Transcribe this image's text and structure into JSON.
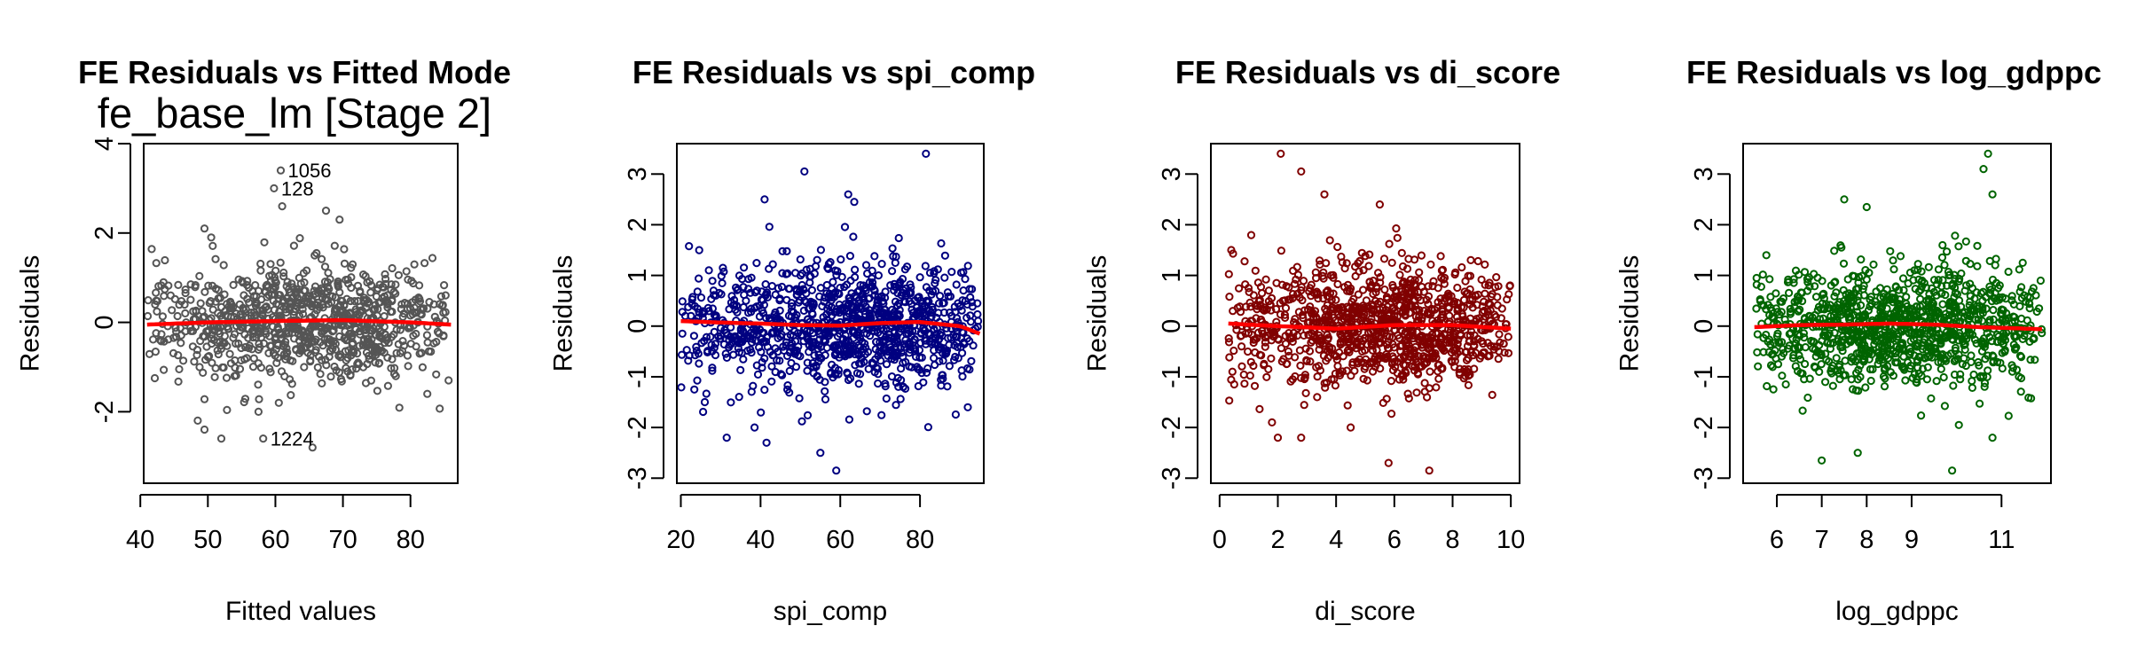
{
  "chart_data": [
    {
      "type": "scatter",
      "title": "FE Residuals vs Fitted Mode",
      "subtitle": "fe_base_lm [Stage 2]",
      "xlabel": "Fitted values",
      "ylabel": "Residuals",
      "xlim": [
        40.5,
        87
      ],
      "ylim": [
        -3.6,
        4.0
      ],
      "xticks": [
        40,
        50,
        60,
        70,
        80
      ],
      "yticks": [
        -2,
        0,
        2,
        4
      ],
      "color": "#555555",
      "smooth_color": "#ff0000",
      "smooth": {
        "x": [
          41,
          50,
          60,
          70,
          80,
          86
        ],
        "y": [
          -0.05,
          0.0,
          0.03,
          0.05,
          0.0,
          -0.05
        ]
      },
      "points": {
        "count": 900,
        "x_range": [
          41,
          86
        ],
        "x_peak": 67,
        "sd": 0.62
      },
      "outliers": [
        {
          "x": 60.8,
          "y": 3.4,
          "label": "1056"
        },
        {
          "x": 59.8,
          "y": 3.0,
          "label": "128"
        },
        {
          "x": 58.2,
          "y": -2.6,
          "label": "1224"
        },
        {
          "x": 61.0,
          "y": 2.6
        },
        {
          "x": 67.5,
          "y": 2.5
        },
        {
          "x": 69.5,
          "y": 2.3
        },
        {
          "x": 49.5,
          "y": 2.1
        },
        {
          "x": 50.5,
          "y": 1.9
        },
        {
          "x": 48.5,
          "y": -2.2
        },
        {
          "x": 49.5,
          "y": -2.4
        },
        {
          "x": 52.0,
          "y": -2.6
        },
        {
          "x": 57.5,
          "y": -2.0
        },
        {
          "x": 65.5,
          "y": -2.8
        },
        {
          "x": 60.5,
          "y": -1.8
        },
        {
          "x": 82.5,
          "y": -1.6
        }
      ]
    },
    {
      "type": "scatter",
      "title": "FE Residuals vs spi_comp",
      "subtitle": "",
      "xlabel": "spi_comp",
      "ylabel": "Residuals",
      "xlim": [
        19,
        96
      ],
      "ylim": [
        -3.1,
        3.6
      ],
      "xticks": [
        20,
        40,
        60,
        80
      ],
      "yticks": [
        -3,
        -2,
        -1,
        0,
        1,
        2,
        3
      ],
      "color": "#000080",
      "smooth_color": "#ff0000",
      "smooth": {
        "x": [
          20,
          30,
          40,
          50,
          60,
          70,
          80,
          90,
          95
        ],
        "y": [
          0.1,
          0.07,
          0.05,
          0.02,
          0.01,
          0.06,
          0.08,
          0.0,
          -0.15
        ]
      },
      "points": {
        "count": 1050,
        "x_range": [
          20,
          95
        ],
        "x_peak": 72,
        "sd": 0.6
      },
      "outliers": [
        {
          "x": 81.5,
          "y": 3.4
        },
        {
          "x": 51.0,
          "y": 3.05
        },
        {
          "x": 62.0,
          "y": 2.6
        },
        {
          "x": 63.5,
          "y": 2.45
        },
        {
          "x": 41.0,
          "y": 2.5
        },
        {
          "x": 59.0,
          "y": -2.85
        },
        {
          "x": 31.5,
          "y": -2.2
        },
        {
          "x": 41.5,
          "y": -2.3
        },
        {
          "x": 55.0,
          "y": -2.5
        },
        {
          "x": 26.0,
          "y": -1.5
        },
        {
          "x": 38.5,
          "y": -2.0
        },
        {
          "x": 92.0,
          "y": -1.6
        }
      ]
    },
    {
      "type": "scatter",
      "title": "FE Residuals vs di_score",
      "subtitle": "",
      "xlabel": "di_score",
      "ylabel": "Residuals",
      "xlim": [
        -0.3,
        10.3
      ],
      "ylim": [
        -3.1,
        3.6
      ],
      "xticks": [
        0,
        2,
        4,
        6,
        8,
        10
      ],
      "yticks": [
        -3,
        -2,
        -1,
        0,
        1,
        2,
        3
      ],
      "color": "#800000",
      "smooth_color": "#ff0000",
      "smooth": {
        "x": [
          0.3,
          2,
          4,
          6,
          8,
          10
        ],
        "y": [
          0.05,
          0.0,
          -0.05,
          0.02,
          0.02,
          -0.05
        ]
      },
      "points": {
        "count": 1050,
        "x_range": [
          0.3,
          10
        ],
        "x_peak": 6.5,
        "sd": 0.62
      },
      "outliers": [
        {
          "x": 2.1,
          "y": 3.4
        },
        {
          "x": 2.8,
          "y": 3.05
        },
        {
          "x": 3.6,
          "y": 2.6
        },
        {
          "x": 5.5,
          "y": 2.4
        },
        {
          "x": 0.4,
          "y": 1.5
        },
        {
          "x": 2.0,
          "y": -2.2
        },
        {
          "x": 2.8,
          "y": -2.2
        },
        {
          "x": 1.8,
          "y": -1.9
        },
        {
          "x": 7.2,
          "y": -2.85
        },
        {
          "x": 5.8,
          "y": -2.7
        },
        {
          "x": 0.5,
          "y": -1.15
        },
        {
          "x": 4.5,
          "y": -2.0
        }
      ]
    },
    {
      "type": "scatter",
      "title": "FE Residuals vs log_gdppc",
      "subtitle": "",
      "xlabel": "log_gdppc",
      "ylabel": "Residuals",
      "xlim": [
        5.25,
        12.1
      ],
      "ylim": [
        -3.1,
        3.6
      ],
      "xticks": [
        6,
        7,
        8,
        9,
        11
      ],
      "yticks": [
        -3,
        -2,
        -1,
        0,
        1,
        2,
        3
      ],
      "color": "#006400",
      "smooth_color": "#ff0000",
      "smooth": {
        "x": [
          5.5,
          6.5,
          7.5,
          8.5,
          9.5,
          10.5,
          11.9
        ],
        "y": [
          -0.02,
          0.02,
          0.03,
          0.05,
          0.03,
          -0.02,
          -0.06
        ]
      },
      "points": {
        "count": 1050,
        "x_range": [
          5.5,
          11.9
        ],
        "x_peak": 8.3,
        "sd": 0.6
      },
      "outliers": [
        {
          "x": 10.7,
          "y": 3.4
        },
        {
          "x": 10.6,
          "y": 3.1
        },
        {
          "x": 10.8,
          "y": 2.6
        },
        {
          "x": 7.5,
          "y": 2.5
        },
        {
          "x": 8.0,
          "y": 2.35
        },
        {
          "x": 9.9,
          "y": -2.85
        },
        {
          "x": 10.8,
          "y": -2.2
        },
        {
          "x": 7.0,
          "y": -2.65
        },
        {
          "x": 7.8,
          "y": -2.5
        },
        {
          "x": 10.05,
          "y": -1.95
        },
        {
          "x": 5.55,
          "y": 0.95
        },
        {
          "x": 6.2,
          "y": -1.15
        }
      ]
    }
  ]
}
